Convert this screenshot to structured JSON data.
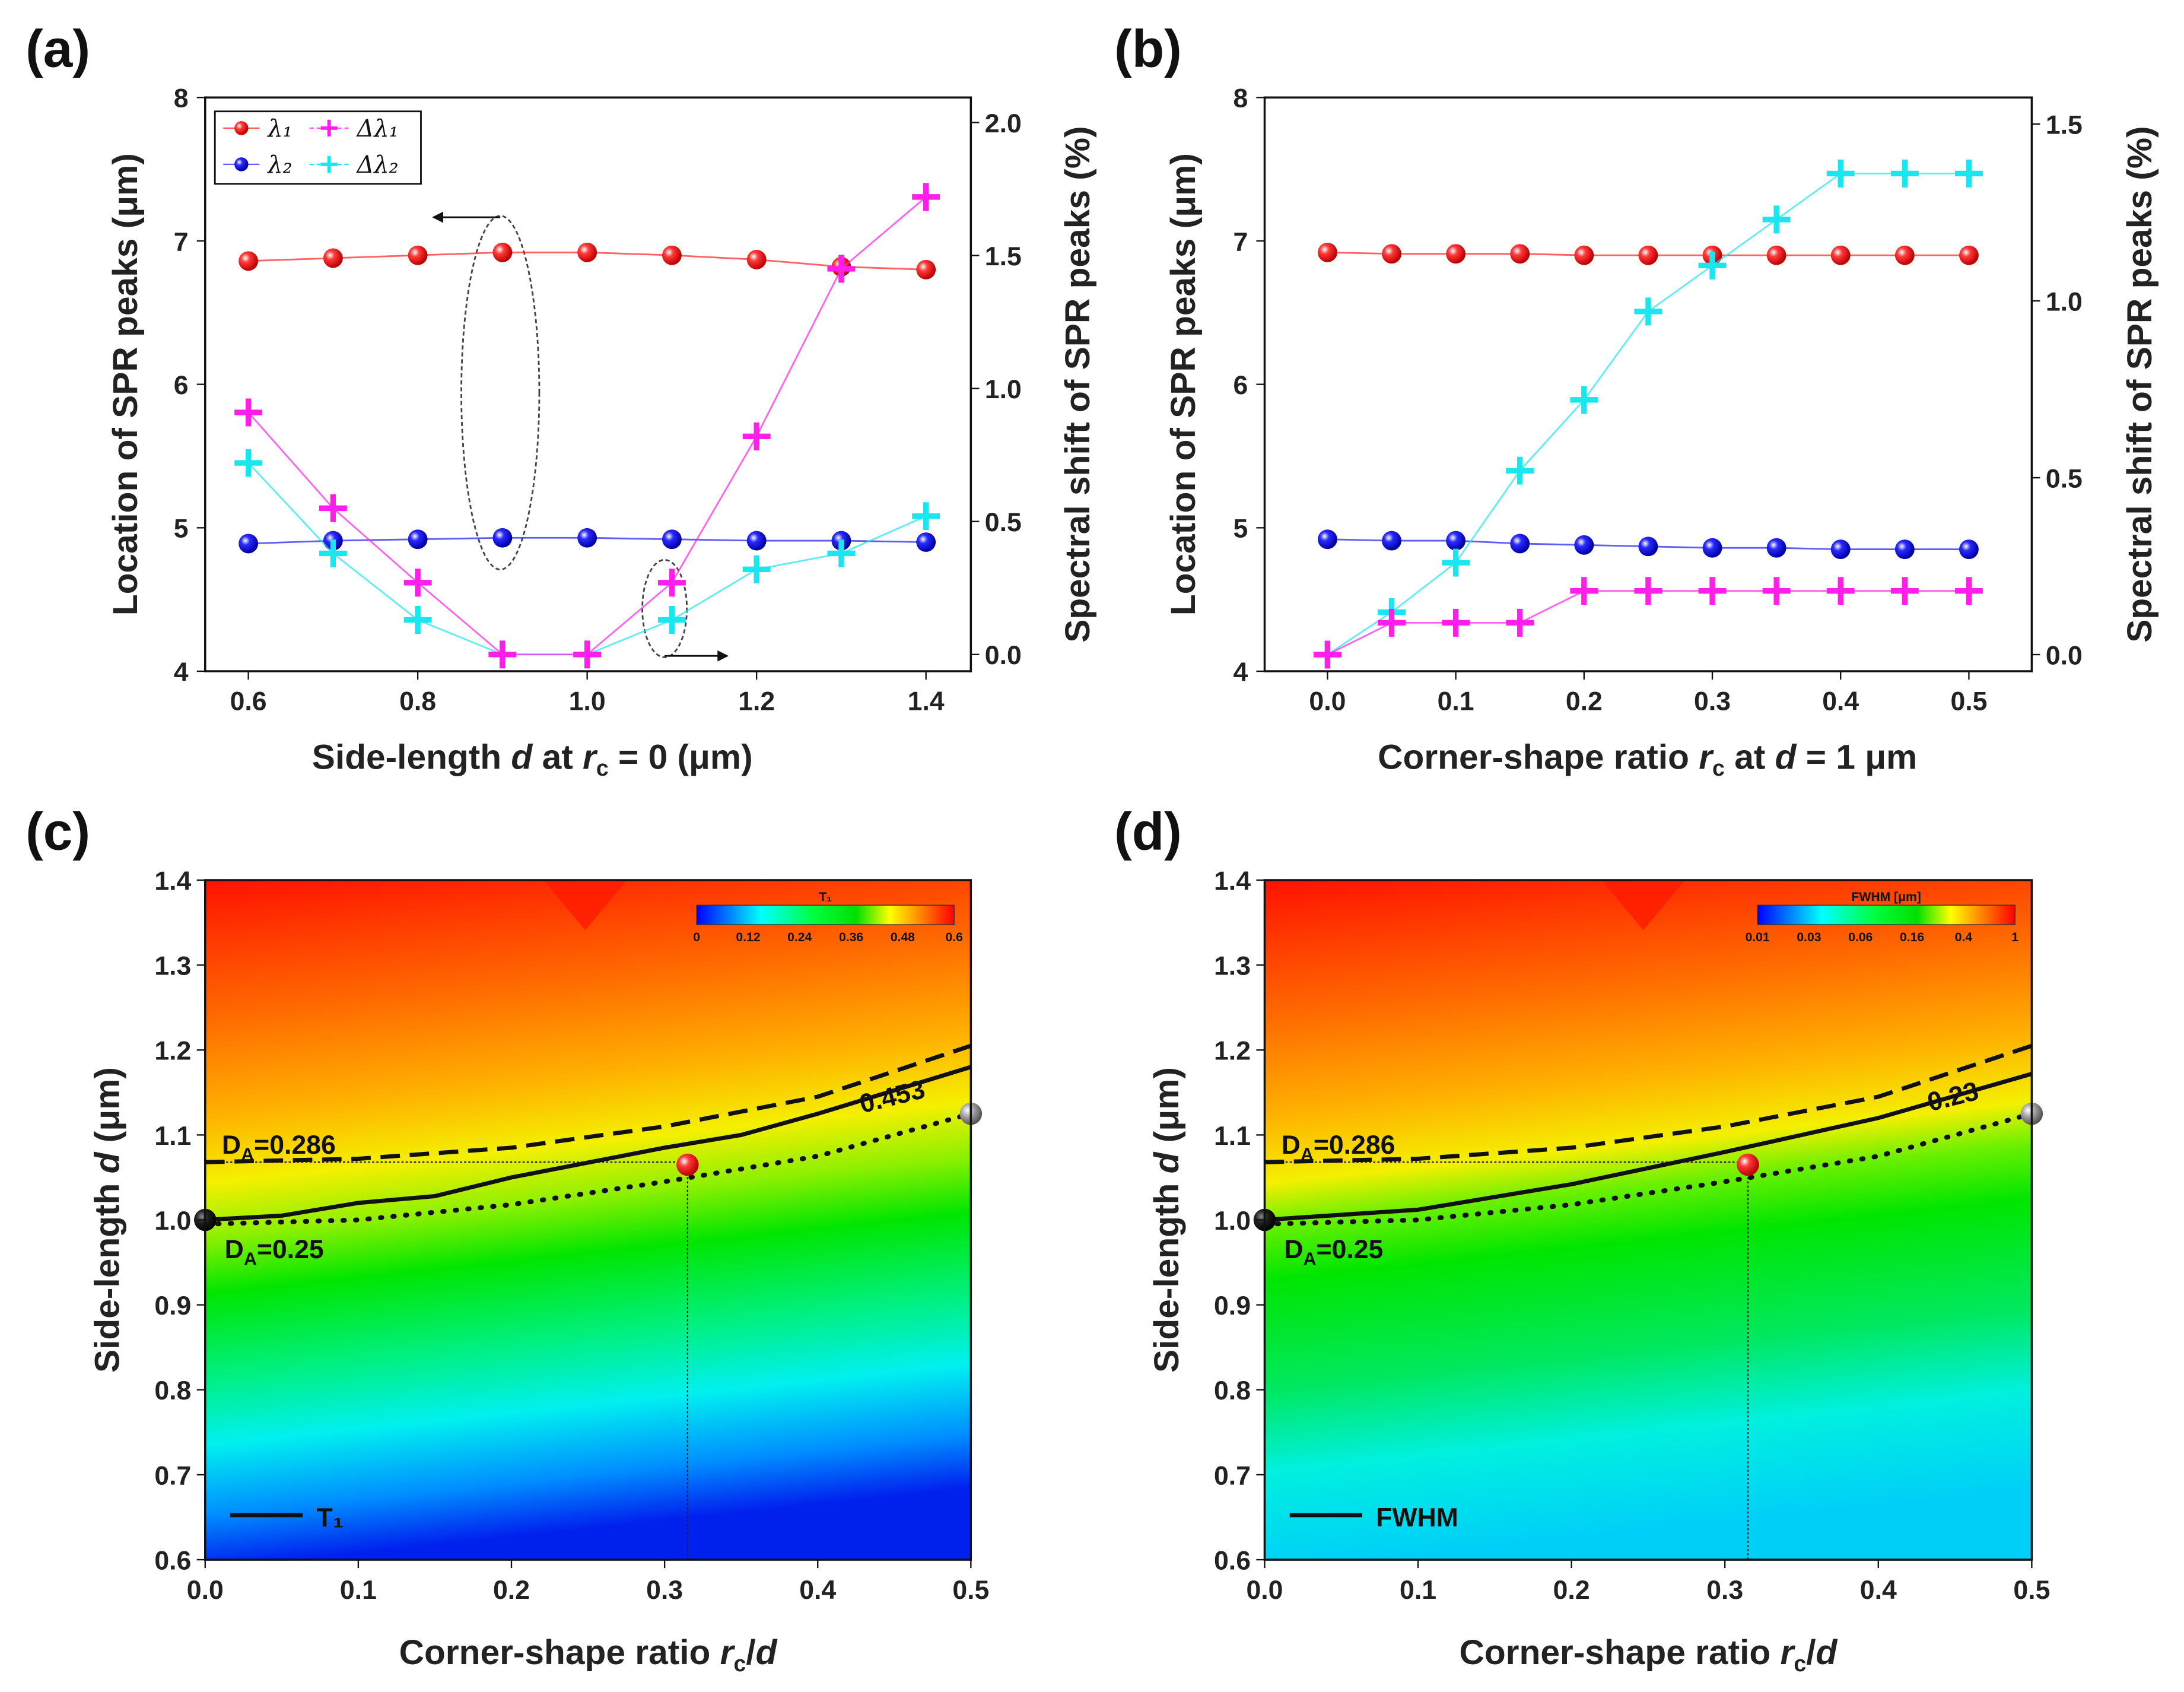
{
  "panel_labels": [
    "(a)",
    "(b)",
    "(c)",
    "(d)"
  ],
  "chart_data": [
    {
      "type": "line",
      "panel": "(a)",
      "xlabel": [
        "Side-length ",
        "d",
        " at ",
        "r",
        "c",
        " = 0 (μm)"
      ],
      "ylabel": "Location of SPR peaks (μm)",
      "y2label": "Spectral shift of SPR peaks (%)",
      "xlim": [
        0.549,
        1.453
      ],
      "ylim": [
        4,
        8
      ],
      "y2lim": [
        -0.063,
        2.094
      ],
      "xticks": [
        "0.6",
        "0.8",
        "1.0",
        "1.2",
        "1.4"
      ],
      "xtick_values": [
        0.6,
        0.8,
        1.0,
        1.2,
        1.4
      ],
      "yticks": [
        "4",
        "5",
        "6",
        "7",
        "8"
      ],
      "y2ticks": [
        "0.0",
        "0.5",
        "1.0",
        "1.5",
        "2.0"
      ],
      "y2tick_values": [
        0,
        0.5,
        1.0,
        1.5,
        2.0
      ],
      "x": [
        0.6,
        0.7,
        0.8,
        0.9,
        1.0,
        1.1,
        1.2,
        1.3,
        1.4
      ],
      "series": [
        {
          "name": "λ₁",
          "axis": "left",
          "marker": "sphere",
          "color": "#ff2020",
          "values": [
            6.86,
            6.88,
            6.9,
            6.92,
            6.92,
            6.9,
            6.87,
            6.82,
            6.8
          ]
        },
        {
          "name": "λ₂",
          "axis": "left",
          "marker": "sphere",
          "color": "#1a1aee",
          "values": [
            4.89,
            4.91,
            4.92,
            4.93,
            4.93,
            4.92,
            4.91,
            4.91,
            4.9
          ]
        },
        {
          "name": "Δλ₁",
          "axis": "right",
          "marker": "plus",
          "color": "#ff1fe8",
          "values": [
            0.91,
            0.55,
            0.27,
            0.0,
            0.0,
            0.27,
            0.82,
            1.45,
            1.72
          ]
        },
        {
          "name": "Δλ₂",
          "axis": "right",
          "marker": "plus",
          "color": "#19e6ee",
          "values": [
            0.72,
            0.38,
            0.13,
            0.0,
            0.0,
            0.13,
            0.32,
            0.38,
            0.52
          ]
        }
      ],
      "legend": "top-left"
    },
    {
      "type": "line",
      "panel": "(b)",
      "xlabel": [
        "Corner-shape ratio ",
        "r",
        "c",
        " at ",
        "d",
        " = 1 μm"
      ],
      "ylabel": "Location of SPR peaks (μm)",
      "y2label": "Spectral shift of SPR peaks (%)",
      "xlim": [
        -0.049,
        0.549
      ],
      "ylim": [
        4,
        8
      ],
      "y2lim": [
        -0.047,
        1.575
      ],
      "xticks": [
        "0.0",
        "0.1",
        "0.2",
        "0.3",
        "0.4",
        "0.5"
      ],
      "xtick_values": [
        0,
        0.1,
        0.2,
        0.3,
        0.4,
        0.5
      ],
      "yticks": [
        "4",
        "5",
        "6",
        "7",
        "8"
      ],
      "y2ticks": [
        "0.0",
        "0.5",
        "1.0",
        "1.5"
      ],
      "y2tick_values": [
        0,
        0.5,
        1.0,
        1.5
      ],
      "x": [
        0,
        0.05,
        0.1,
        0.15,
        0.2,
        0.25,
        0.3,
        0.35,
        0.4,
        0.45,
        0.5
      ],
      "series": [
        {
          "name": "λ₁",
          "axis": "left",
          "marker": "sphere",
          "color": "#ff2020",
          "values": [
            6.92,
            6.91,
            6.91,
            6.91,
            6.9,
            6.9,
            6.9,
            6.9,
            6.9,
            6.9,
            6.9
          ]
        },
        {
          "name": "λ₂",
          "axis": "left",
          "marker": "sphere",
          "color": "#1a1aee",
          "values": [
            4.92,
            4.91,
            4.91,
            4.89,
            4.88,
            4.87,
            4.86,
            4.86,
            4.85,
            4.85,
            4.85
          ]
        },
        {
          "name": "Δλ₁",
          "axis": "right",
          "marker": "plus",
          "color": "#ff1fe8",
          "values": [
            0.0,
            0.09,
            0.09,
            0.09,
            0.18,
            0.18,
            0.18,
            0.18,
            0.18,
            0.18,
            0.18
          ]
        },
        {
          "name": "Δλ₂",
          "axis": "right",
          "marker": "plus",
          "color": "#19e6ee",
          "values": [
            0.0,
            0.12,
            0.26,
            0.52,
            0.72,
            0.97,
            1.1,
            1.23,
            1.36,
            1.36,
            1.36
          ]
        }
      ]
    },
    {
      "type": "heatmap",
      "panel": "(c)",
      "xlabel": [
        "Corner-shape ratio  ",
        "r",
        "c",
        "/",
        "d"
      ],
      "ylabel": [
        "Side-length ",
        "d",
        " (μm)"
      ],
      "xlim": [
        0,
        0.5
      ],
      "ylim": [
        0.6,
        1.4
      ],
      "xticks": [
        "0.0",
        "0.1",
        "0.2",
        "0.3",
        "0.4",
        "0.5"
      ],
      "yticks": [
        "0.6",
        "0.7",
        "0.8",
        "0.9",
        "1.0",
        "1.1",
        "1.2",
        "1.3",
        "1.4"
      ],
      "colorbar": {
        "title": "T₁",
        "ticks": [
          "0",
          "0.12",
          "0.24",
          "0.36",
          "0.48",
          "0.6"
        ]
      },
      "legend": "T₁",
      "contour_solid": [
        [
          0,
          1.0
        ],
        [
          0.05,
          1.005
        ],
        [
          0.1,
          1.02
        ],
        [
          0.15,
          1.028
        ],
        [
          0.2,
          1.05
        ],
        [
          0.3,
          1.085
        ],
        [
          0.35,
          1.1
        ],
        [
          0.4,
          1.125
        ],
        [
          0.5,
          1.18
        ]
      ],
      "contour_dashed": [
        [
          0,
          1.068
        ],
        [
          0.1,
          1.072
        ],
        [
          0.2,
          1.085
        ],
        [
          0.3,
          1.11
        ],
        [
          0.4,
          1.145
        ],
        [
          0.5,
          1.205
        ]
      ],
      "contour_dotted": [
        [
          0,
          0.995
        ],
        [
          0.1,
          1.0
        ],
        [
          0.2,
          1.018
        ],
        [
          0.3,
          1.045
        ],
        [
          0.4,
          1.075
        ],
        [
          0.5,
          1.125
        ]
      ],
      "annotations": {
        "da_high": [
          "D",
          "A",
          "=0.286"
        ],
        "da_low": [
          "D",
          "A",
          "=0.25"
        ],
        "value": "0.453"
      },
      "points": [
        {
          "x": 0,
          "y": 1.0,
          "color": "#111111"
        },
        {
          "x": 0.315,
          "y": 1.065,
          "color": "#ee1111"
        },
        {
          "x": 0.5,
          "y": 1.125,
          "color": "#999999"
        }
      ]
    },
    {
      "type": "heatmap",
      "panel": "(d)",
      "xlabel": [
        "Corner-shape ratio  ",
        "r",
        "c",
        "/",
        "d"
      ],
      "ylabel": [
        "Side-length ",
        "d",
        " (μm)"
      ],
      "xlim": [
        0,
        0.5
      ],
      "ylim": [
        0.6,
        1.4
      ],
      "xticks": [
        "0.0",
        "0.1",
        "0.2",
        "0.3",
        "0.4",
        "0.5"
      ],
      "yticks": [
        "0.6",
        "0.7",
        "0.8",
        "0.9",
        "1.0",
        "1.1",
        "1.2",
        "1.3",
        "1.4"
      ],
      "colorbar": {
        "title": "FWHM [μm]",
        "ticks": [
          "0.01",
          "0.03",
          "0.06",
          "0.16",
          "0.4",
          "1"
        ]
      },
      "legend": "FWHM",
      "contour_solid": [
        [
          0,
          1.0
        ],
        [
          0.1,
          1.012
        ],
        [
          0.2,
          1.042
        ],
        [
          0.3,
          1.08
        ],
        [
          0.35,
          1.1
        ],
        [
          0.4,
          1.12
        ],
        [
          0.5,
          1.172
        ]
      ],
      "contour_dashed": [
        [
          0,
          1.068
        ],
        [
          0.1,
          1.072
        ],
        [
          0.2,
          1.085
        ],
        [
          0.3,
          1.11
        ],
        [
          0.4,
          1.145
        ],
        [
          0.5,
          1.205
        ]
      ],
      "contour_dotted": [
        [
          0,
          0.995
        ],
        [
          0.1,
          1.0
        ],
        [
          0.2,
          1.018
        ],
        [
          0.3,
          1.045
        ],
        [
          0.4,
          1.075
        ],
        [
          0.5,
          1.125
        ]
      ],
      "annotations": {
        "da_high": [
          "D",
          "A",
          "=0.286"
        ],
        "da_low": [
          "D",
          "A",
          "=0.25"
        ],
        "value": "0.23"
      },
      "points": [
        {
          "x": 0,
          "y": 1.0,
          "color": "#111111"
        },
        {
          "x": 0.315,
          "y": 1.065,
          "color": "#ee1111"
        },
        {
          "x": 0.5,
          "y": 1.125,
          "color": "#999999"
        }
      ]
    }
  ]
}
